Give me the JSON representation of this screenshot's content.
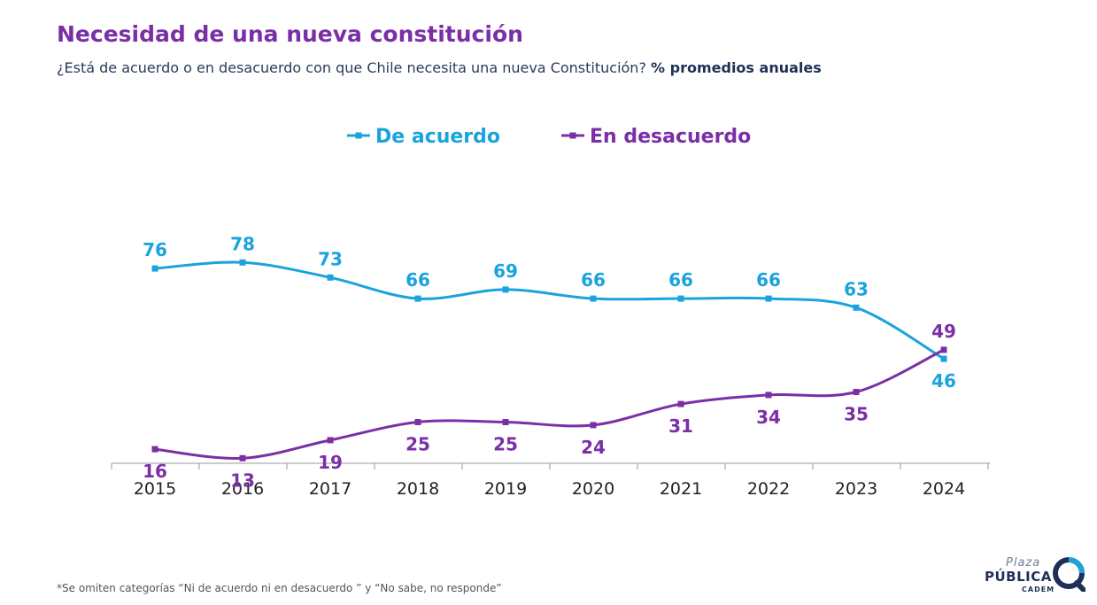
{
  "header": {
    "title": "Necesidad de una nueva constitución",
    "subtitle": "¿Está de acuerdo o en desacuerdo con que Chile necesita una nueva Constitución?",
    "subtitle_bold": "% promedios anuales"
  },
  "chart_data": {
    "type": "line",
    "categories": [
      "2015",
      "2016",
      "2017",
      "2018",
      "2019",
      "2020",
      "2021",
      "2022",
      "2023",
      "2024"
    ],
    "series": [
      {
        "name": "De acuerdo",
        "color": "#1AA3DD",
        "values": [
          76,
          78,
          73,
          66,
          69,
          66,
          66,
          66,
          63,
          46
        ]
      },
      {
        "name": "En desacuerdo",
        "color": "#7B2FA6",
        "values": [
          16,
          13,
          19,
          25,
          25,
          24,
          31,
          34,
          35,
          49
        ]
      }
    ],
    "legend_position": "top-center",
    "grid": false,
    "smooth": true
  },
  "footnote": "*Se omiten categorías “Ni de acuerdo ni en desacuerdo ” y “No sabe, no responde”",
  "logo": {
    "line1": "Plaza",
    "line2": "PÚBLICA",
    "line3": "CADEM"
  }
}
